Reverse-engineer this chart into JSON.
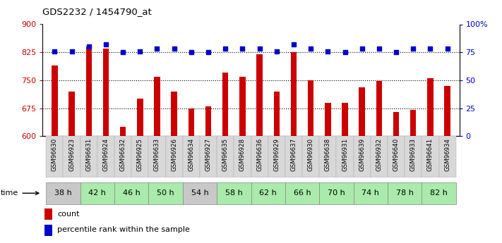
{
  "title": "GDS2232 / 1454790_at",
  "samples": [
    "GSM96630",
    "GSM96923",
    "GSM96631",
    "GSM96924",
    "GSM96632",
    "GSM96925",
    "GSM96633",
    "GSM96926",
    "GSM96634",
    "GSM96927",
    "GSM96635",
    "GSM96928",
    "GSM96636",
    "GSM96929",
    "GSM96637",
    "GSM96930",
    "GSM96638",
    "GSM96931",
    "GSM96639",
    "GSM96932",
    "GSM96640",
    "GSM96933",
    "GSM96641",
    "GSM96934"
  ],
  "counts": [
    790,
    720,
    840,
    835,
    625,
    700,
    760,
    720,
    675,
    680,
    770,
    760,
    820,
    720,
    825,
    750,
    690,
    690,
    730,
    748,
    665,
    670,
    755,
    735
  ],
  "percentiles": [
    76,
    76,
    80,
    82,
    75,
    76,
    78,
    78,
    75,
    75,
    78,
    78,
    78,
    76,
    82,
    78,
    76,
    75,
    78,
    78,
    75,
    78,
    78,
    78
  ],
  "time_groups": [
    {
      "label": "38 h",
      "indices": [
        0,
        1
      ],
      "color": "#c8c8c8"
    },
    {
      "label": "42 h",
      "indices": [
        2,
        3
      ],
      "color": "#aaeaaa"
    },
    {
      "label": "46 h",
      "indices": [
        4,
        5
      ],
      "color": "#aaeaaa"
    },
    {
      "label": "50 h",
      "indices": [
        6,
        7
      ],
      "color": "#aaeaaa"
    },
    {
      "label": "54 h",
      "indices": [
        8,
        9
      ],
      "color": "#c8c8c8"
    },
    {
      "label": "58 h",
      "indices": [
        10,
        11
      ],
      "color": "#aaeaaa"
    },
    {
      "label": "62 h",
      "indices": [
        12,
        13
      ],
      "color": "#aaeaaa"
    },
    {
      "label": "66 h",
      "indices": [
        14,
        15
      ],
      "color": "#aaeaaa"
    },
    {
      "label": "70 h",
      "indices": [
        16,
        17
      ],
      "color": "#aaeaaa"
    },
    {
      "label": "74 h",
      "indices": [
        18,
        19
      ],
      "color": "#aaeaaa"
    },
    {
      "label": "78 h",
      "indices": [
        20,
        21
      ],
      "color": "#aaeaaa"
    },
    {
      "label": "82 h",
      "indices": [
        22,
        23
      ],
      "color": "#aaeaaa"
    }
  ],
  "ylim_left": [
    600,
    900
  ],
  "ylim_right": [
    0,
    100
  ],
  "bar_color": "#cc0000",
  "dot_color": "#0000cc",
  "bar_width": 0.35,
  "background_color": "#ffffff",
  "tick_color_left": "#cc0000",
  "tick_color_right": "#0000cc",
  "yticks_left": [
    600,
    675,
    750,
    825,
    900
  ],
  "yticks_right": [
    0,
    25,
    50,
    75,
    100
  ],
  "ytick_labels_right": [
    "0",
    "25",
    "50",
    "75",
    "100%"
  ]
}
